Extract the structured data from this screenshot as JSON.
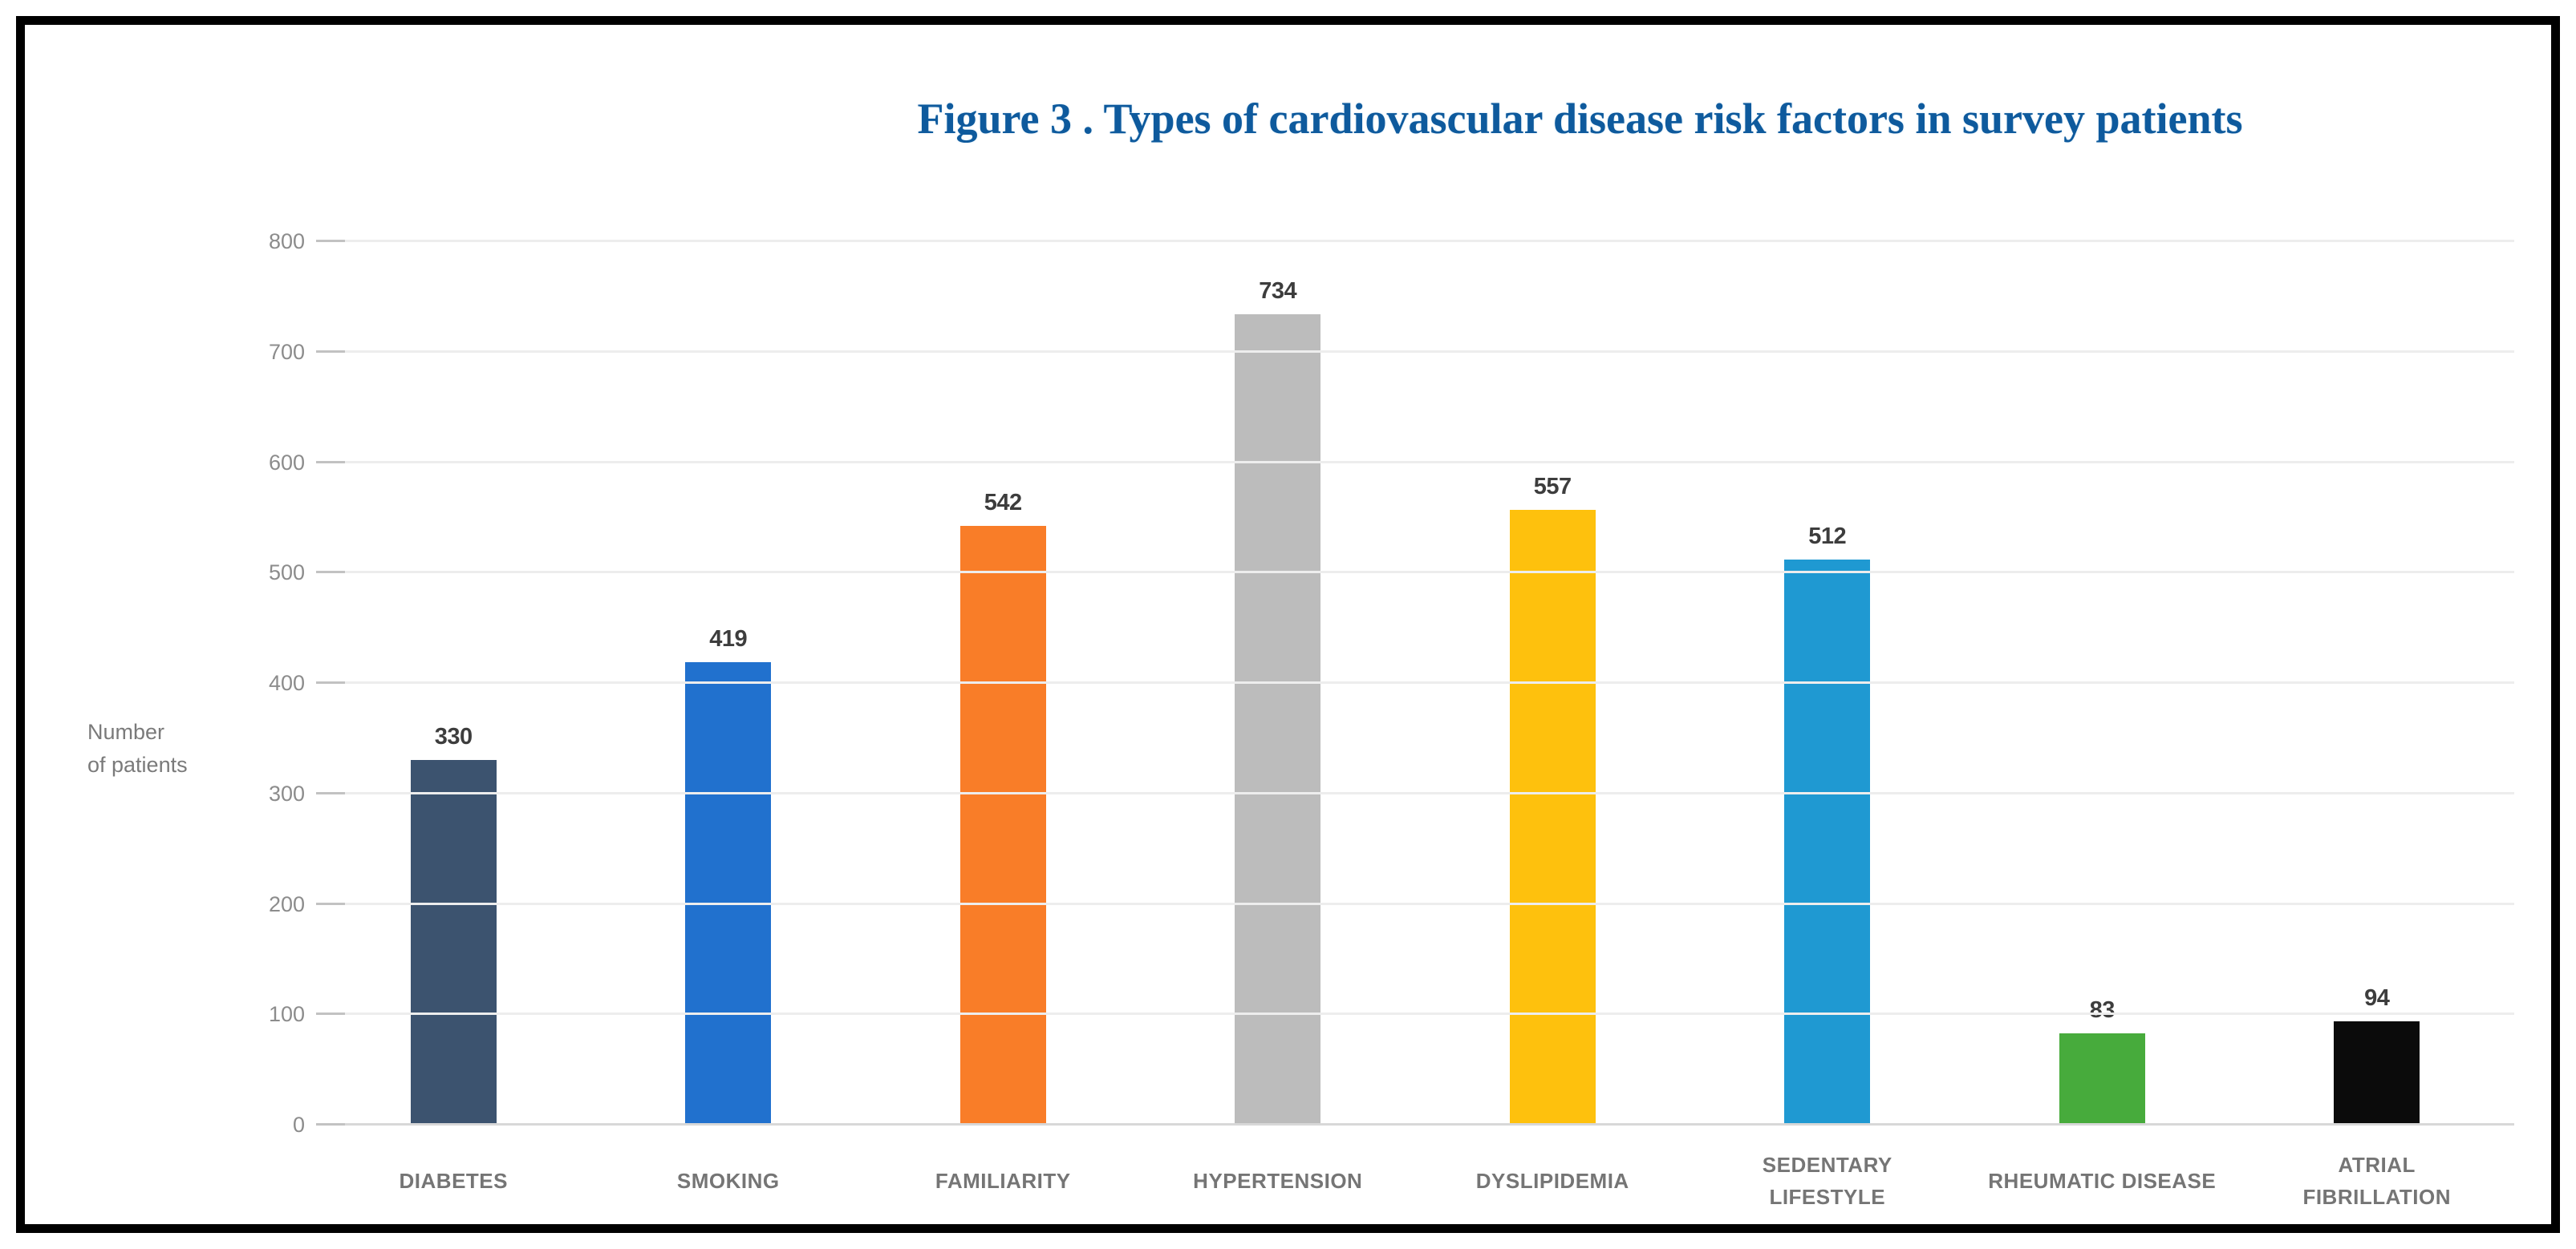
{
  "colors": {
    "title_blue": "#0E5A9D",
    "grid_color": "#EDEDED",
    "axis_line_color": "#D8D8D8",
    "tick_color": "#C2C2C2",
    "tick_text": "#8C8C8C",
    "axis_text": "#7A7A7A",
    "value_text": "#3D3D3D",
    "cat_text": "#757575",
    "frame_border": "#000000",
    "background": "#FFFFFF"
  },
  "chart_data": {
    "type": "bar",
    "title": "Figure 3 . Types of cardiovascular disease risk factors in survey patients",
    "ylabel": "Number of patients",
    "ylabel_lines": [
      "Number",
      "of patients"
    ],
    "xlabel": "",
    "categories": [
      "DIABETES",
      "SMOKING",
      "FAMILIARITY",
      "HYPERTENSION",
      "DYSLIPIDEMIA",
      "SEDENTARY LIFESTYLE",
      "RHEUMATIC DISEASE",
      "ATRIAL FIBRILLATION"
    ],
    "label_lines": [
      [
        "DIABETES"
      ],
      [
        "SMOKING"
      ],
      [
        "FAMILIARITY"
      ],
      [
        "HYPERTENSION"
      ],
      [
        "DYSLIPIDEMIA"
      ],
      [
        "SEDENTARY",
        "LIFESTYLE"
      ],
      [
        "RHEUMATIC DISEASE"
      ],
      [
        "ATRIAL",
        "FIBRILLATION"
      ]
    ],
    "values": [
      330,
      419,
      542,
      734,
      557,
      512,
      83,
      94
    ],
    "bar_colors": [
      "#3C536F",
      "#2171CE",
      "#F97D28",
      "#BCBCBC",
      "#FEC10D",
      "#1F99D2",
      "#47AB3C",
      "#0B0B0B"
    ],
    "yticks": [
      0,
      100,
      200,
      300,
      400,
      500,
      600,
      700,
      800
    ],
    "ylim": [
      0,
      800
    ],
    "grid": true,
    "legend": "none"
  }
}
